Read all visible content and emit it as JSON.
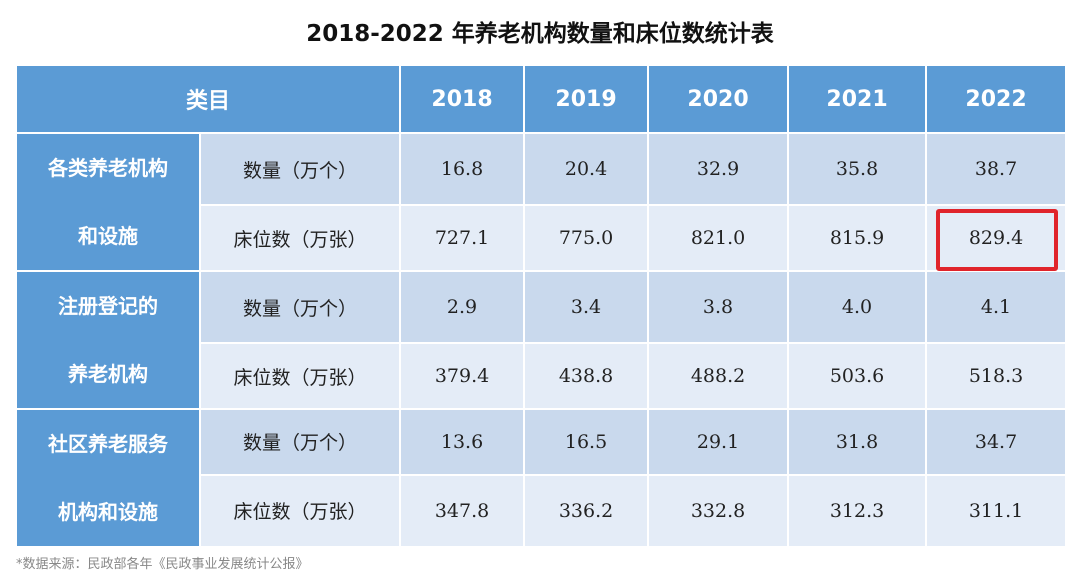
{
  "chart_data": {
    "type": "table",
    "title": "2018-2022 年养老机构数量和床位数统计表",
    "header": {
      "category_label": "类目",
      "years": [
        "2018",
        "2019",
        "2020",
        "2021",
        "2022"
      ]
    },
    "groups": [
      {
        "name_lines": [
          "各类养老机构",
          "和设施"
        ],
        "rows": [
          {
            "label": "数量（万个）",
            "values": [
              "16.8",
              "20.4",
              "32.9",
              "35.8",
              "38.7"
            ]
          },
          {
            "label": "床位数（万张）",
            "values": [
              "727.1",
              "775.0",
              "821.0",
              "815.9",
              "829.4"
            ]
          }
        ]
      },
      {
        "name_lines": [
          "注册登记的",
          "养老机构"
        ],
        "rows": [
          {
            "label": "数量（万个）",
            "values": [
              "2.9",
              "3.4",
              "3.8",
              "4.0",
              "4.1"
            ]
          },
          {
            "label": "床位数（万张）",
            "values": [
              "379.4",
              "438.8",
              "488.2",
              "503.6",
              "518.3"
            ]
          }
        ]
      },
      {
        "name_lines": [
          "社区养老服务",
          "机构和设施"
        ],
        "rows": [
          {
            "label": "数量（万个）",
            "values": [
              "13.6",
              "16.5",
              "29.1",
              "31.8",
              "34.7"
            ]
          },
          {
            "label": "床位数（万张）",
            "values": [
              "347.8",
              "336.2",
              "332.8",
              "312.3",
              "311.1"
            ]
          }
        ]
      }
    ],
    "highlighted_cell": {
      "group": 0,
      "row": 1,
      "year": "2022",
      "value": "829.4"
    },
    "source": "*数据来源：民政部各年《民政事业发展统计公报》"
  },
  "colors": {
    "header_bg": "#5b9bd5",
    "row_dark": "#c9d9ed",
    "row_light": "#e4ecf7",
    "highlight": "#e0242b"
  }
}
